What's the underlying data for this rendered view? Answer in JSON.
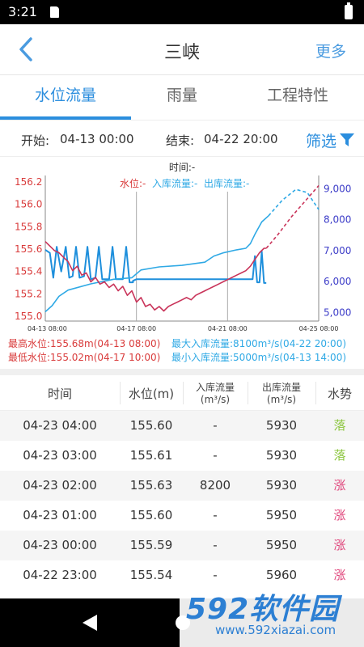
{
  "status_bar": {
    "time": "3:21"
  },
  "header": {
    "title": "三峡",
    "more_label": "更多"
  },
  "tabs": [
    {
      "label": "水位流量",
      "active": true
    },
    {
      "label": "雨量",
      "active": false
    },
    {
      "label": "工程特性",
      "active": false
    }
  ],
  "filter": {
    "start_label": "开始:",
    "start_value": "04-13 00:00",
    "end_label": "结束:",
    "end_value": "04-22 20:00",
    "filter_label": "筛选"
  },
  "chart_data": {
    "type": "line",
    "time_label": "时间:-",
    "legend": [
      {
        "label": "水位:-",
        "color": "#d93b3b"
      },
      {
        "label": "入库流量:-",
        "color": "#2fa9e5"
      },
      {
        "label": "出库流量:-",
        "color": "#2fa9e5"
      }
    ],
    "x_ticks": [
      "04-13 08:00",
      "04-17 08:00",
      "04-21 08:00",
      "04-25 08:00"
    ],
    "x_range_days": [
      0,
      12
    ],
    "y_left": {
      "ticks": [
        "156.2",
        "156.0",
        "155.8",
        "155.6",
        "155.4",
        "155.2",
        "155.0"
      ],
      "range": [
        154.95,
        156.25
      ],
      "color": "#d93b3b"
    },
    "y_right": {
      "ticks": [
        "9,000",
        "8,000",
        "7,000",
        "6,000",
        "5,000"
      ],
      "range": [
        4700,
        9400
      ],
      "color": "#3c3cc8"
    },
    "vlines_days": [
      4,
      8
    ],
    "water_level": {
      "color": "#c9345a",
      "points": [
        [
          0,
          155.66
        ],
        [
          0.2,
          155.62
        ],
        [
          0.4,
          155.58
        ],
        [
          0.6,
          155.56
        ],
        [
          0.8,
          155.52
        ],
        [
          1.0,
          155.48
        ],
        [
          1.2,
          155.4
        ],
        [
          1.4,
          155.44
        ],
        [
          1.6,
          155.36
        ],
        [
          1.8,
          155.38
        ],
        [
          2.0,
          155.3
        ],
        [
          2.2,
          155.34
        ],
        [
          2.4,
          155.28
        ],
        [
          2.6,
          155.3
        ],
        [
          2.8,
          155.25
        ],
        [
          3.0,
          155.28
        ],
        [
          3.2,
          155.22
        ],
        [
          3.4,
          155.26
        ],
        [
          3.6,
          155.18
        ],
        [
          3.8,
          155.22
        ],
        [
          4.0,
          155.12
        ],
        [
          4.2,
          155.16
        ],
        [
          4.4,
          155.08
        ],
        [
          4.6,
          155.1
        ],
        [
          4.8,
          155.05
        ],
        [
          5.0,
          155.08
        ],
        [
          5.2,
          155.04
        ],
        [
          5.4,
          155.08
        ],
        [
          5.6,
          155.1
        ],
        [
          5.8,
          155.12
        ],
        [
          6.0,
          155.14
        ],
        [
          6.2,
          155.16
        ],
        [
          6.4,
          155.14
        ],
        [
          6.6,
          155.18
        ],
        [
          6.8,
          155.2
        ],
        [
          7.0,
          155.22
        ],
        [
          7.2,
          155.24
        ],
        [
          7.4,
          155.26
        ],
        [
          7.6,
          155.28
        ],
        [
          7.8,
          155.3
        ],
        [
          8.0,
          155.32
        ],
        [
          8.2,
          155.34
        ],
        [
          8.4,
          155.36
        ],
        [
          8.6,
          155.38
        ],
        [
          8.8,
          155.4
        ],
        [
          9.0,
          155.44
        ],
        [
          9.2,
          155.5
        ],
        [
          9.4,
          155.56
        ],
        [
          9.6,
          155.6
        ],
        [
          9.7,
          155.6
        ]
      ],
      "forecast": [
        [
          9.7,
          155.6
        ],
        [
          10.2,
          155.72
        ],
        [
          10.8,
          155.88
        ],
        [
          11.4,
          156.02
        ],
        [
          12.0,
          156.16
        ]
      ]
    },
    "inflow": {
      "color": "#2fa9e5",
      "points": [
        [
          0,
          5000
        ],
        [
          0.3,
          5200
        ],
        [
          0.6,
          5500
        ],
        [
          1.0,
          5700
        ],
        [
          2.0,
          5900
        ],
        [
          3.0,
          6050
        ],
        [
          3.8,
          6100
        ],
        [
          4.2,
          6350
        ],
        [
          5.0,
          6450
        ],
        [
          6.0,
          6500
        ],
        [
          7.0,
          6600
        ],
        [
          7.4,
          6800
        ],
        [
          7.8,
          6900
        ],
        [
          8.4,
          7000
        ],
        [
          8.8,
          7050
        ],
        [
          9.0,
          7200
        ],
        [
          9.2,
          7500
        ],
        [
          9.5,
          7900
        ],
        [
          9.8,
          8100
        ]
      ],
      "forecast": [
        [
          9.8,
          8100
        ],
        [
          10.4,
          8600
        ],
        [
          11.0,
          8950
        ],
        [
          11.5,
          8850
        ],
        [
          12.0,
          8300
        ]
      ]
    },
    "outflow": {
      "color": "#1e8fdc",
      "points": [
        [
          0,
          7000
        ],
        [
          0.2,
          6900
        ],
        [
          0.35,
          6100
        ],
        [
          0.5,
          7100
        ],
        [
          0.7,
          6300
        ],
        [
          0.9,
          7100
        ],
        [
          1.05,
          6100
        ],
        [
          1.2,
          6150
        ],
        [
          1.35,
          7100
        ],
        [
          1.5,
          6100
        ],
        [
          1.7,
          6150
        ],
        [
          1.85,
          7100
        ],
        [
          2.0,
          6050
        ],
        [
          2.2,
          6100
        ],
        [
          2.35,
          7100
        ],
        [
          2.5,
          6050
        ],
        [
          2.8,
          6050
        ],
        [
          2.95,
          7100
        ],
        [
          3.1,
          6050
        ],
        [
          3.4,
          6050
        ],
        [
          3.55,
          7100
        ],
        [
          3.7,
          5950
        ],
        [
          3.85,
          5950
        ],
        [
          3.85,
          6000
        ],
        [
          4.0,
          6050
        ],
        [
          4.6,
          6050
        ],
        [
          5.0,
          6050
        ],
        [
          5.5,
          6050
        ],
        [
          6.0,
          6050
        ],
        [
          6.5,
          6050
        ],
        [
          7.0,
          6050
        ],
        [
          7.5,
          6050
        ],
        [
          8.0,
          6050
        ],
        [
          8.5,
          6050
        ],
        [
          9.0,
          6050
        ],
        [
          9.1,
          6050
        ],
        [
          9.2,
          6800
        ],
        [
          9.3,
          5950
        ],
        [
          9.4,
          5950
        ],
        [
          9.5,
          6950
        ],
        [
          9.6,
          5930
        ],
        [
          9.7,
          5930
        ]
      ]
    }
  },
  "extremes": {
    "max_level": "最高水位:155.68m(04-13 08:00)",
    "min_level": "最低水位:155.02m(04-17 10:00)",
    "max_inflow": "最大入库流量:8100m³/s(04-22 20:00)",
    "min_inflow": "最小入库流量:5000m³/s(04-13 14:00)"
  },
  "table": {
    "headers": {
      "time": "时间",
      "level": "水位(m)",
      "inflow_l1": "入库流量",
      "inflow_l2": "(m³/s)",
      "outflow_l1": "出库流量",
      "outflow_l2": "(m³/s)",
      "trend": "水势"
    },
    "rows": [
      {
        "time": "04-23 04:00",
        "level": "155.60",
        "inflow": "-",
        "outflow": "5930",
        "trend": "落"
      },
      {
        "time": "04-23 03:00",
        "level": "155.61",
        "inflow": "-",
        "outflow": "5930",
        "trend": "落"
      },
      {
        "time": "04-23 02:00",
        "level": "155.63",
        "inflow": "8200",
        "outflow": "5930",
        "trend": "涨"
      },
      {
        "time": "04-23 01:00",
        "level": "155.60",
        "inflow": "-",
        "outflow": "5950",
        "trend": "涨"
      },
      {
        "time": "04-23 00:00",
        "level": "155.59",
        "inflow": "-",
        "outflow": "5950",
        "trend": "涨"
      },
      {
        "time": "04-22 23:00",
        "level": "155.54",
        "inflow": "-",
        "outflow": "5960",
        "trend": "涨"
      }
    ]
  },
  "watermark": {
    "brand": "592软件园",
    "url": "www.592xiazai.com"
  }
}
